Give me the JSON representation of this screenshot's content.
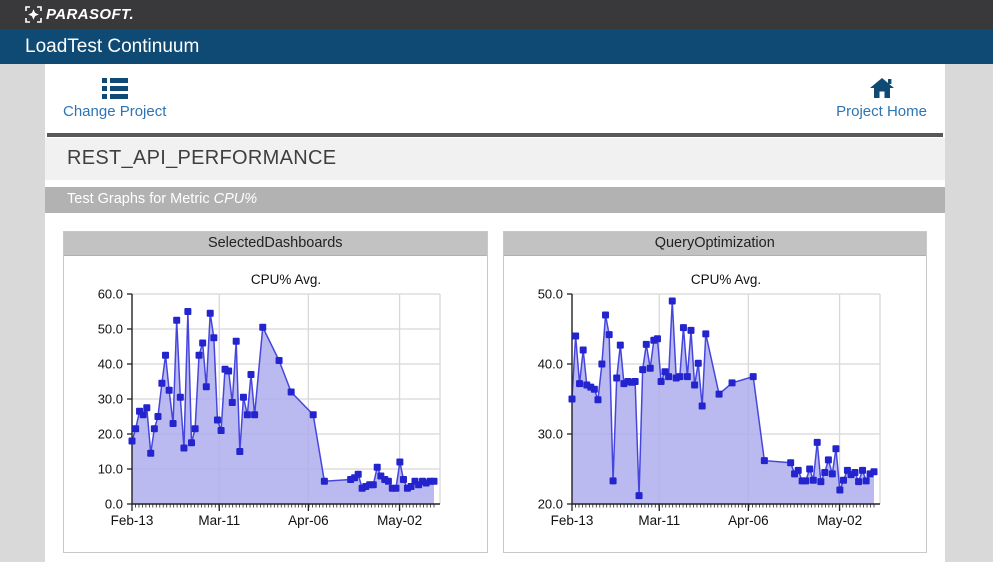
{
  "brand": {
    "logo": "PARASOFT.",
    "app_title": "LoadTest Continuum"
  },
  "nav": {
    "change_project": {
      "label": "Change Project"
    },
    "project_home": {
      "label": "Project Home"
    }
  },
  "page": {
    "title": "REST_API_PERFORMANCE",
    "metric_band": {
      "prefix": "Test Graphs for Metric",
      "metric": "CPU%"
    }
  },
  "colors": {
    "topbar": "#39393b",
    "accent_blue": "#0e4a73",
    "link_blue": "#2d74b5",
    "grid": "#d8d8d8",
    "series_line": "#4646de",
    "series_fill": "#aeaeef",
    "series_marker": "#2424cf"
  },
  "chart_data": [
    {
      "type": "area",
      "panel_title": "SelectedDashboards",
      "title": "CPU% Avg.",
      "ylim": [
        0,
        60
      ],
      "yticks": [
        0,
        10,
        20,
        30,
        40,
        50,
        60
      ],
      "grid": true,
      "legend": "none",
      "xticks": [
        {
          "label": "Feb-13",
          "f": 0.0
        },
        {
          "label": "Mar-11",
          "f": 0.289
        },
        {
          "label": "Apr-06",
          "f": 0.584
        },
        {
          "label": "May-02",
          "f": 0.886
        }
      ],
      "points": [
        [
          0.0,
          18.0
        ],
        [
          0.012,
          21.5
        ],
        [
          0.025,
          26.5
        ],
        [
          0.037,
          25.5
        ],
        [
          0.049,
          27.5
        ],
        [
          0.062,
          14.5
        ],
        [
          0.074,
          21.5
        ],
        [
          0.086,
          25.0
        ],
        [
          0.099,
          34.5
        ],
        [
          0.111,
          42.5
        ],
        [
          0.123,
          32.5
        ],
        [
          0.136,
          23.0
        ],
        [
          0.148,
          52.5
        ],
        [
          0.16,
          30.5
        ],
        [
          0.172,
          16.0
        ],
        [
          0.185,
          55.0
        ],
        [
          0.197,
          17.5
        ],
        [
          0.209,
          21.5
        ],
        [
          0.222,
          42.5
        ],
        [
          0.234,
          46.0
        ],
        [
          0.246,
          33.5
        ],
        [
          0.259,
          54.5
        ],
        [
          0.271,
          47.5
        ],
        [
          0.283,
          24.0
        ],
        [
          0.295,
          21.0
        ],
        [
          0.308,
          38.5
        ],
        [
          0.32,
          38.0
        ],
        [
          0.332,
          29.0
        ],
        [
          0.345,
          46.5
        ],
        [
          0.357,
          15.0
        ],
        [
          0.369,
          30.5
        ],
        [
          0.382,
          25.5
        ],
        [
          0.394,
          37.0
        ],
        [
          0.406,
          25.5
        ],
        [
          0.433,
          50.5
        ],
        [
          0.487,
          41.0
        ],
        [
          0.527,
          32.0
        ],
        [
          0.6,
          25.5
        ],
        [
          0.637,
          6.5
        ],
        [
          0.724,
          7.0
        ],
        [
          0.737,
          7.5
        ],
        [
          0.749,
          8.5
        ],
        [
          0.762,
          4.5
        ],
        [
          0.774,
          5.0
        ],
        [
          0.787,
          5.5
        ],
        [
          0.799,
          5.5
        ],
        [
          0.812,
          10.5
        ],
        [
          0.824,
          8.0
        ],
        [
          0.837,
          7.0
        ],
        [
          0.849,
          6.5
        ],
        [
          0.862,
          4.5
        ],
        [
          0.874,
          4.5
        ],
        [
          0.887,
          12.0
        ],
        [
          0.899,
          7.0
        ],
        [
          0.912,
          4.5
        ],
        [
          0.924,
          5.0
        ],
        [
          0.937,
          6.5
        ],
        [
          0.949,
          5.5
        ],
        [
          0.962,
          6.5
        ],
        [
          0.974,
          6.0
        ],
        [
          0.987,
          6.5
        ],
        [
          1.0,
          6.5
        ]
      ]
    },
    {
      "type": "area",
      "panel_title": "QueryOptimization",
      "title": "CPU% Avg.",
      "ylim": [
        20,
        50
      ],
      "yticks": [
        20,
        30,
        40,
        50
      ],
      "grid": true,
      "legend": "none",
      "xticks": [
        {
          "label": "Feb-13",
          "f": 0.0
        },
        {
          "label": "Mar-11",
          "f": 0.289
        },
        {
          "label": "Apr-06",
          "f": 0.584
        },
        {
          "label": "May-02",
          "f": 0.886
        }
      ],
      "points": [
        [
          0.0,
          35.0
        ],
        [
          0.012,
          44.0
        ],
        [
          0.025,
          37.2
        ],
        [
          0.037,
          42.0
        ],
        [
          0.049,
          37.0
        ],
        [
          0.062,
          36.7
        ],
        [
          0.074,
          36.4
        ],
        [
          0.086,
          34.9
        ],
        [
          0.099,
          40.0
        ],
        [
          0.111,
          47.0
        ],
        [
          0.123,
          44.2
        ],
        [
          0.136,
          23.3
        ],
        [
          0.148,
          38.0
        ],
        [
          0.16,
          42.7
        ],
        [
          0.172,
          37.2
        ],
        [
          0.185,
          37.5
        ],
        [
          0.197,
          37.4
        ],
        [
          0.209,
          37.5
        ],
        [
          0.222,
          21.2
        ],
        [
          0.234,
          39.2
        ],
        [
          0.246,
          42.8
        ],
        [
          0.259,
          39.4
        ],
        [
          0.271,
          43.4
        ],
        [
          0.283,
          43.6
        ],
        [
          0.295,
          37.5
        ],
        [
          0.308,
          38.9
        ],
        [
          0.32,
          38.2
        ],
        [
          0.332,
          49.0
        ],
        [
          0.345,
          38.0
        ],
        [
          0.357,
          38.2
        ],
        [
          0.369,
          45.2
        ],
        [
          0.382,
          38.2
        ],
        [
          0.394,
          44.8
        ],
        [
          0.406,
          37.0
        ],
        [
          0.418,
          40.1
        ],
        [
          0.431,
          34.0
        ],
        [
          0.443,
          44.3
        ],
        [
          0.487,
          35.7
        ],
        [
          0.53,
          37.3
        ],
        [
          0.6,
          38.2
        ],
        [
          0.637,
          26.2
        ],
        [
          0.724,
          25.9
        ],
        [
          0.737,
          24.3
        ],
        [
          0.749,
          24.8
        ],
        [
          0.762,
          23.3
        ],
        [
          0.774,
          23.3
        ],
        [
          0.787,
          25.0
        ],
        [
          0.799,
          23.4
        ],
        [
          0.812,
          28.8
        ],
        [
          0.824,
          23.2
        ],
        [
          0.837,
          24.5
        ],
        [
          0.849,
          26.3
        ],
        [
          0.862,
          24.3
        ],
        [
          0.874,
          27.9
        ],
        [
          0.887,
          22.0
        ],
        [
          0.899,
          23.4
        ],
        [
          0.912,
          24.8
        ],
        [
          0.924,
          24.2
        ],
        [
          0.937,
          24.5
        ],
        [
          0.949,
          23.2
        ],
        [
          0.962,
          24.8
        ],
        [
          0.974,
          23.3
        ],
        [
          0.987,
          24.3
        ],
        [
          1.0,
          24.6
        ]
      ]
    }
  ]
}
